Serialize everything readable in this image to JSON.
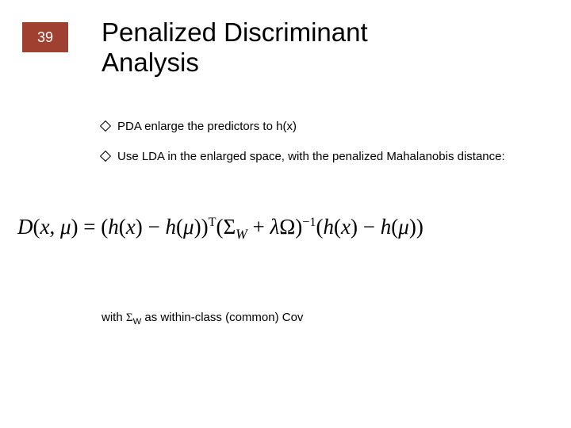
{
  "page_number": "39",
  "page_number_bg": "#a04030",
  "title_line1": "Penalized Discriminant",
  "title_line2": "Analysis",
  "bullets": [
    "PDA enlarge the predictors to h(x)",
    "Use LDA in the enlarged space, with the penalized Mahalanobis distance:"
  ],
  "formula": {
    "D": "D",
    "lp1": "(",
    "x": "x",
    "comma1": ", ",
    "mu1": "μ",
    "rp1": ")",
    "eq": " = ",
    "lp2": "(",
    "h1": "h",
    "lpx1": "(",
    "xv1": "x",
    "rpx1": ")",
    "minus1": " − ",
    "h2": "h",
    "lpm1": "(",
    "mu2": "μ",
    "rpm1": ")",
    "rp2": ")",
    "T": "T",
    "lp3": "(",
    "Sigma": "Σ",
    "W": "W",
    "plus": " + ",
    "lambda": "λ",
    "Omega": "Ω",
    "rp3": ")",
    "inv": "−1",
    "lp4": "(",
    "h3": "h",
    "lpx2": "(",
    "xv2": "x",
    "rpx2": ")",
    "minus2": " − ",
    "h4": "h",
    "lpm2": "(",
    "mu3": "μ",
    "rpm2": ")",
    "rp4": ")"
  },
  "closing_prefix": "with ",
  "closing_sigma": "Σ",
  "closing_sub": "W",
  "closing_suffix": " as within-class (common) Cov"
}
